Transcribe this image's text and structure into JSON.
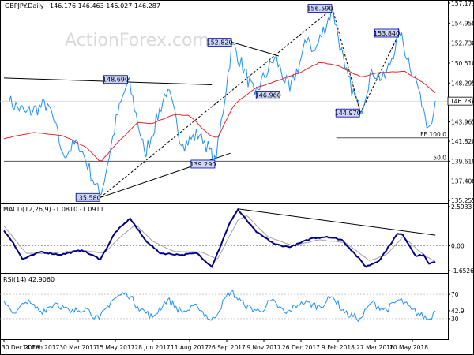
{
  "header": {
    "symbol": "GBPJPY.Daily",
    "ohlc": "146.176 146.463 146.027 146.287"
  },
  "watermark": "ActionForex.com",
  "colors": {
    "price": "#1e90ff",
    "ma": "#e8262c",
    "macd": "#00008b",
    "signal": "#a0a0a0",
    "rsi": "#1e90ff",
    "annotation_box": "#ccd6f5",
    "current_price_box": "#ffffff"
  },
  "chart_data": [
    {
      "type": "line",
      "panel": "price",
      "ylim": [
        135.255,
        157.171
      ],
      "y_ticks": [
        {
          "value": 157.171,
          "label": "157.171"
        },
        {
          "value": 154.95,
          "label": "154.950"
        },
        {
          "value": 152.73,
          "label": "152.730"
        },
        {
          "value": 150.51,
          "label": "150.510"
        },
        {
          "value": 148.295,
          "label": "148.295"
        },
        {
          "value": 143.965,
          "label": "143.965"
        },
        {
          "value": 141.82,
          "label": "141.820"
        },
        {
          "value": 139.61,
          "label": "139.610"
        },
        {
          "value": 137.4,
          "label": "137.400"
        },
        {
          "value": 135.255,
          "label": "135.255"
        }
      ],
      "current_price": {
        "value": 146.287,
        "label": "146.287"
      },
      "x_ticks": [
        "30 Dec 2016",
        "14 Feb 2017",
        "30 Mar 2017",
        "15 May 2017",
        "28 Jun 2017",
        "11 Aug 2017",
        "26 Sep 2017",
        "9 Nov 2017",
        "26 Dec 2017",
        "9 Feb 2018",
        "27 Mar 2018",
        "10 May 2018"
      ],
      "pivots": [
        {
          "x": 0.14,
          "y": 146.2
        },
        {
          "x": 0.6,
          "y": 145.0
        },
        {
          "x": 1.2,
          "y": 146.0
        },
        {
          "x": 1.6,
          "y": 140.3
        },
        {
          "x": 2.0,
          "y": 141.8
        },
        {
          "x": 2.6,
          "y": 135.58
        },
        {
          "x": 3.05,
          "y": 144.6
        },
        {
          "x": 3.35,
          "y": 148.69
        },
        {
          "x": 3.8,
          "y": 140.4
        },
        {
          "x": 4.4,
          "y": 147.8
        },
        {
          "x": 4.8,
          "y": 141.4
        },
        {
          "x": 5.3,
          "y": 142.8
        },
        {
          "x": 5.7,
          "y": 139.29
        },
        {
          "x": 6.15,
          "y": 152.82
        },
        {
          "x": 6.75,
          "y": 146.96
        },
        {
          "x": 7.3,
          "y": 151.2
        },
        {
          "x": 7.7,
          "y": 147.4
        },
        {
          "x": 8.2,
          "y": 153.4
        },
        {
          "x": 8.35,
          "y": 151.6
        },
        {
          "x": 8.85,
          "y": 156.59
        },
        {
          "x": 9.2,
          "y": 149.6
        },
        {
          "x": 9.6,
          "y": 144.97
        },
        {
          "x": 9.9,
          "y": 149.8
        },
        {
          "x": 10.25,
          "y": 148.6
        },
        {
          "x": 10.65,
          "y": 153.84
        },
        {
          "x": 11.2,
          "y": 147.3
        },
        {
          "x": 11.45,
          "y": 143.2
        },
        {
          "x": 11.62,
          "y": 146.287
        }
      ],
      "ma_pivots": [
        {
          "x": 0.0,
          "y": 142.1
        },
        {
          "x": 0.8,
          "y": 142.8
        },
        {
          "x": 1.6,
          "y": 142.4
        },
        {
          "x": 2.2,
          "y": 141.2
        },
        {
          "x": 2.6,
          "y": 139.5
        },
        {
          "x": 3.0,
          "y": 141.4
        },
        {
          "x": 3.6,
          "y": 143.9
        },
        {
          "x": 4.0,
          "y": 143.8
        },
        {
          "x": 4.6,
          "y": 144.8
        },
        {
          "x": 5.0,
          "y": 144.7
        },
        {
          "x": 5.5,
          "y": 142.6
        },
        {
          "x": 5.75,
          "y": 142.2
        },
        {
          "x": 6.2,
          "y": 145.9
        },
        {
          "x": 6.8,
          "y": 147.8
        },
        {
          "x": 7.4,
          "y": 148.6
        },
        {
          "x": 8.0,
          "y": 149.5
        },
        {
          "x": 8.5,
          "y": 150.6
        },
        {
          "x": 9.0,
          "y": 150.2
        },
        {
          "x": 9.6,
          "y": 149.0
        },
        {
          "x": 10.2,
          "y": 149.5
        },
        {
          "x": 10.8,
          "y": 149.6
        },
        {
          "x": 11.3,
          "y": 148.3
        },
        {
          "x": 11.62,
          "y": 147.2
        }
      ],
      "annotations": [
        {
          "label": "135.580",
          "x": 2.6,
          "y": 135.58,
          "pos": "left"
        },
        {
          "label": "148.690",
          "x": 3.35,
          "y": 148.69,
          "pos": "left"
        },
        {
          "label": "139.290",
          "x": 5.7,
          "y": 139.29,
          "pos": "left"
        },
        {
          "label": "152.820",
          "x": 6.15,
          "y": 152.82,
          "pos": "left"
        },
        {
          "label": "146.960",
          "x": 6.75,
          "y": 146.96,
          "pos": "right"
        },
        {
          "label": "156.590",
          "x": 8.85,
          "y": 156.59,
          "pos": "left"
        },
        {
          "label": "144.970",
          "x": 9.6,
          "y": 144.97,
          "pos": "left"
        },
        {
          "label": "153.840",
          "x": 10.65,
          "y": 153.84,
          "pos": "left"
        }
      ],
      "trendlines": [
        {
          "x1": 0.0,
          "y1": 148.85,
          "x2": 5.6,
          "y2": 148.1
        },
        {
          "x1": 2.6,
          "y1": 135.58,
          "x2": 6.1,
          "y2": 140.5
        },
        {
          "x1": 2.6,
          "y1": 135.58,
          "x2": 8.85,
          "y2": 156.59
        },
        {
          "x1": 6.15,
          "y1": 152.82,
          "x2": 7.4,
          "y2": 151.3
        },
        {
          "x1": 6.3,
          "y1": 146.96,
          "x2": 7.65,
          "y2": 146.96
        },
        {
          "x1": 8.85,
          "y1": 156.59,
          "x2": 9.6,
          "y2": 144.97
        },
        {
          "x1": 9.6,
          "y1": 144.97,
          "x2": 10.65,
          "y2": 153.84
        }
      ],
      "levels": [
        {
          "label": "FE 100.0",
          "value": 142.2,
          "x_start": 8.95
        },
        {
          "label": "50.0",
          "value": 139.6,
          "x_start": 0.0
        }
      ]
    },
    {
      "type": "line",
      "panel": "macd",
      "title": "MACD(12,26,9) -1.0810 -1.0911",
      "ylim": [
        -1.6526,
        2.5933
      ],
      "y_ticks": [
        {
          "value": 2.5933,
          "label": "2.5933"
        },
        {
          "value": 0.0,
          "label": "0.00"
        },
        {
          "value": -1.6526,
          "label": "-1.6526"
        }
      ],
      "macd_pivots": [
        {
          "x": 0.0,
          "y": 1.0
        },
        {
          "x": 0.25,
          "y": 0.2
        },
        {
          "x": 0.5,
          "y": -0.9
        },
        {
          "x": 1.0,
          "y": -0.4
        },
        {
          "x": 1.5,
          "y": -0.6
        },
        {
          "x": 2.1,
          "y": -0.3
        },
        {
          "x": 2.6,
          "y": -0.9
        },
        {
          "x": 3.0,
          "y": 0.9
        },
        {
          "x": 3.4,
          "y": 1.8
        },
        {
          "x": 3.8,
          "y": 0.4
        },
        {
          "x": 4.2,
          "y": -0.5
        },
        {
          "x": 4.8,
          "y": -0.6
        },
        {
          "x": 5.2,
          "y": -0.5
        },
        {
          "x": 5.6,
          "y": -1.4
        },
        {
          "x": 6.1,
          "y": 1.6
        },
        {
          "x": 6.3,
          "y": 2.4
        },
        {
          "x": 6.8,
          "y": 0.9
        },
        {
          "x": 7.3,
          "y": 0.1
        },
        {
          "x": 7.7,
          "y": -0.1
        },
        {
          "x": 8.3,
          "y": 0.5
        },
        {
          "x": 8.7,
          "y": 0.6
        },
        {
          "x": 9.1,
          "y": 0.4
        },
        {
          "x": 9.4,
          "y": -0.4
        },
        {
          "x": 9.75,
          "y": -1.4
        },
        {
          "x": 10.1,
          "y": -1.0
        },
        {
          "x": 10.6,
          "y": 0.8
        },
        {
          "x": 10.75,
          "y": 0.7
        },
        {
          "x": 11.1,
          "y": -0.7
        },
        {
          "x": 11.3,
          "y": -0.6
        },
        {
          "x": 11.45,
          "y": -1.2
        },
        {
          "x": 11.62,
          "y": -1.08
        }
      ],
      "signal_pivots": [
        {
          "x": 0.0,
          "y": 1.3
        },
        {
          "x": 0.6,
          "y": -0.5
        },
        {
          "x": 1.2,
          "y": -0.5
        },
        {
          "x": 2.1,
          "y": -0.3
        },
        {
          "x": 2.7,
          "y": -0.5
        },
        {
          "x": 3.1,
          "y": 0.5
        },
        {
          "x": 3.55,
          "y": 1.4
        },
        {
          "x": 4.0,
          "y": 0.3
        },
        {
          "x": 4.6,
          "y": -0.4
        },
        {
          "x": 5.3,
          "y": -0.4
        },
        {
          "x": 5.75,
          "y": -0.9
        },
        {
          "x": 6.3,
          "y": 1.7
        },
        {
          "x": 6.55,
          "y": 2.0
        },
        {
          "x": 7.1,
          "y": 0.6
        },
        {
          "x": 7.8,
          "y": 0.0
        },
        {
          "x": 8.5,
          "y": 0.4
        },
        {
          "x": 9.2,
          "y": 0.2
        },
        {
          "x": 9.85,
          "y": -1.0
        },
        {
          "x": 10.3,
          "y": -0.6
        },
        {
          "x": 10.75,
          "y": 0.6
        },
        {
          "x": 11.2,
          "y": -0.4
        },
        {
          "x": 11.5,
          "y": -0.9
        },
        {
          "x": 11.62,
          "y": -1.09
        }
      ],
      "trendline": {
        "x1": 6.3,
        "y1": 2.45,
        "x2": 11.62,
        "y2": 0.7
      }
    },
    {
      "type": "line",
      "panel": "rsi",
      "title": "RSI(14) 42.9060",
      "ylim": [
        0,
        100
      ],
      "y_ticks": [
        {
          "value": 70,
          "label": "70"
        },
        {
          "value": 42.906,
          "label": "42.9"
        },
        {
          "value": 30,
          "label": "30"
        }
      ],
      "rsi_pivots": [
        {
          "x": 0.0,
          "y": 60
        },
        {
          "x": 0.3,
          "y": 38
        },
        {
          "x": 0.6,
          "y": 58
        },
        {
          "x": 1.0,
          "y": 42
        },
        {
          "x": 1.4,
          "y": 56
        },
        {
          "x": 1.8,
          "y": 40
        },
        {
          "x": 2.2,
          "y": 48
        },
        {
          "x": 2.55,
          "y": 28
        },
        {
          "x": 2.9,
          "y": 60
        },
        {
          "x": 3.3,
          "y": 74
        },
        {
          "x": 3.6,
          "y": 50
        },
        {
          "x": 4.0,
          "y": 32
        },
        {
          "x": 4.4,
          "y": 62
        },
        {
          "x": 4.8,
          "y": 40
        },
        {
          "x": 5.2,
          "y": 50
        },
        {
          "x": 5.6,
          "y": 26
        },
        {
          "x": 6.1,
          "y": 76
        },
        {
          "x": 6.5,
          "y": 50
        },
        {
          "x": 6.9,
          "y": 42
        },
        {
          "x": 7.2,
          "y": 60
        },
        {
          "x": 7.6,
          "y": 38
        },
        {
          "x": 8.0,
          "y": 58
        },
        {
          "x": 8.5,
          "y": 50
        },
        {
          "x": 8.85,
          "y": 66
        },
        {
          "x": 9.2,
          "y": 38
        },
        {
          "x": 9.6,
          "y": 30
        },
        {
          "x": 9.9,
          "y": 56
        },
        {
          "x": 10.3,
          "y": 44
        },
        {
          "x": 10.65,
          "y": 62
        },
        {
          "x": 11.0,
          "y": 44
        },
        {
          "x": 11.45,
          "y": 28
        },
        {
          "x": 11.62,
          "y": 42.9
        }
      ]
    }
  ]
}
